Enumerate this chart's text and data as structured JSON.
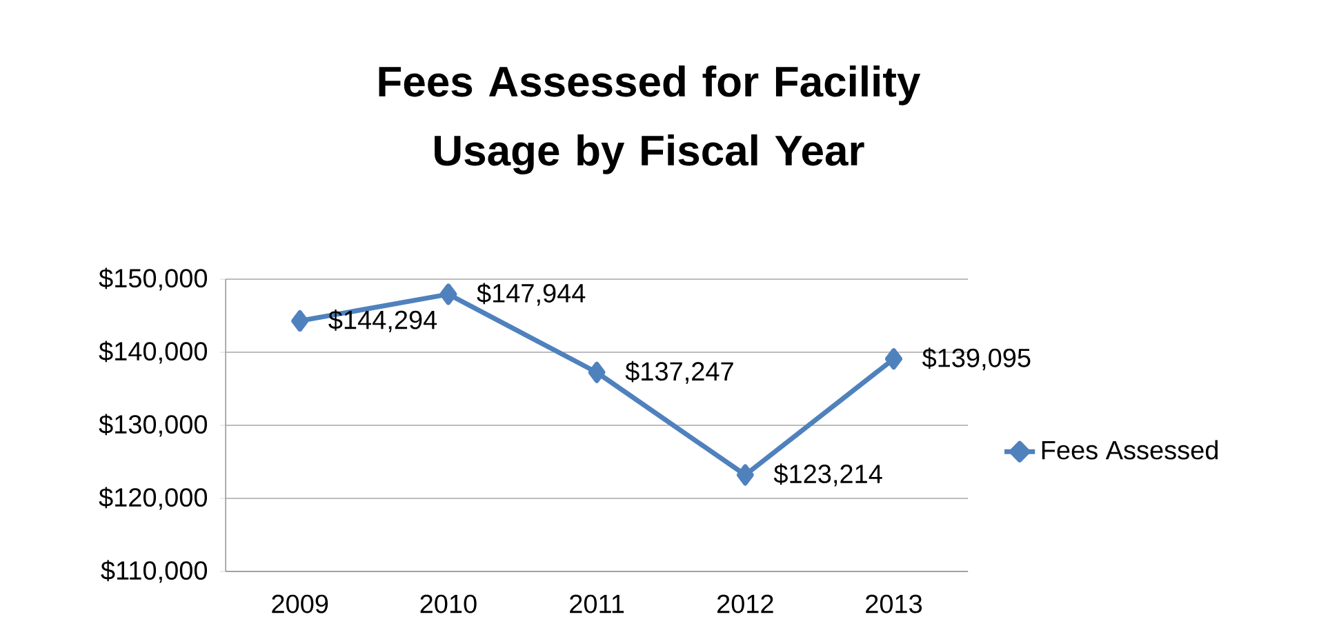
{
  "chart_data": {
    "type": "line",
    "title": "Fees Assessed for Facility Usage by Fiscal Year",
    "categories": [
      "2009",
      "2010",
      "2011",
      "2012",
      "2013"
    ],
    "series": [
      {
        "name": "Fees Assessed",
        "color": "#4f81bd",
        "values": [
          144294,
          147944,
          137247,
          123214,
          139095
        ],
        "value_labels": [
          "$144,294",
          "$147,944",
          "$137,247",
          "$123,214",
          "$139,095"
        ]
      }
    ],
    "ylim": [
      110000,
      150000
    ],
    "yticks": [
      {
        "value": 110000,
        "label": "$110,000"
      },
      {
        "value": 120000,
        "label": "$120,000"
      },
      {
        "value": 130000,
        "label": "$130,000"
      },
      {
        "value": 140000,
        "label": "$140,000"
      },
      {
        "value": 150000,
        "label": "$150,000"
      }
    ],
    "grid": "y",
    "legend": "right",
    "marker": "diamond",
    "line_style": "solid"
  }
}
